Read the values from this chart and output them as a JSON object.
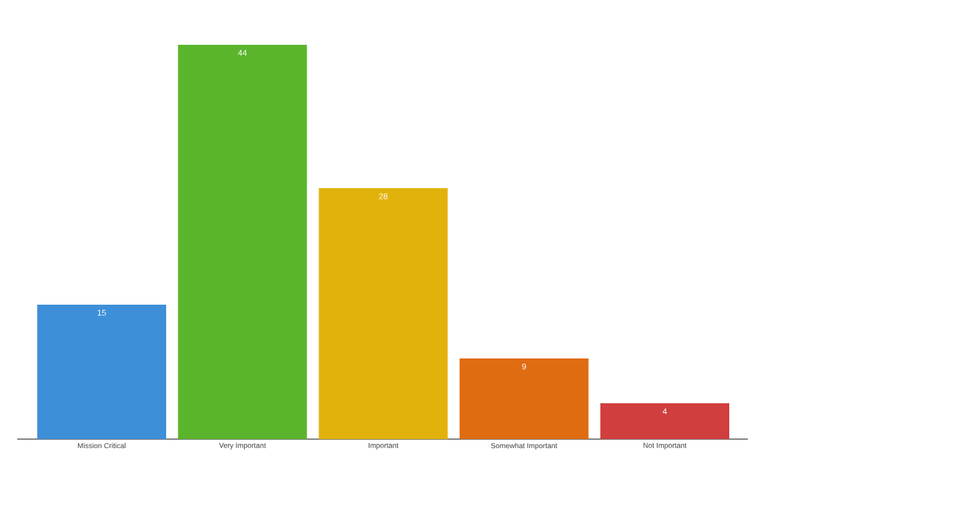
{
  "chart_data": {
    "type": "bar",
    "categories": [
      "Mission Critical",
      "Very Important",
      "Important",
      "Somewhat Important",
      "Not Important"
    ],
    "values": [
      15,
      44,
      28,
      9,
      4
    ],
    "colors": [
      "#3d8fd8",
      "#5ab52c",
      "#e2b20c",
      "#e06c12",
      "#d03e3e"
    ],
    "data_labels": true
  }
}
